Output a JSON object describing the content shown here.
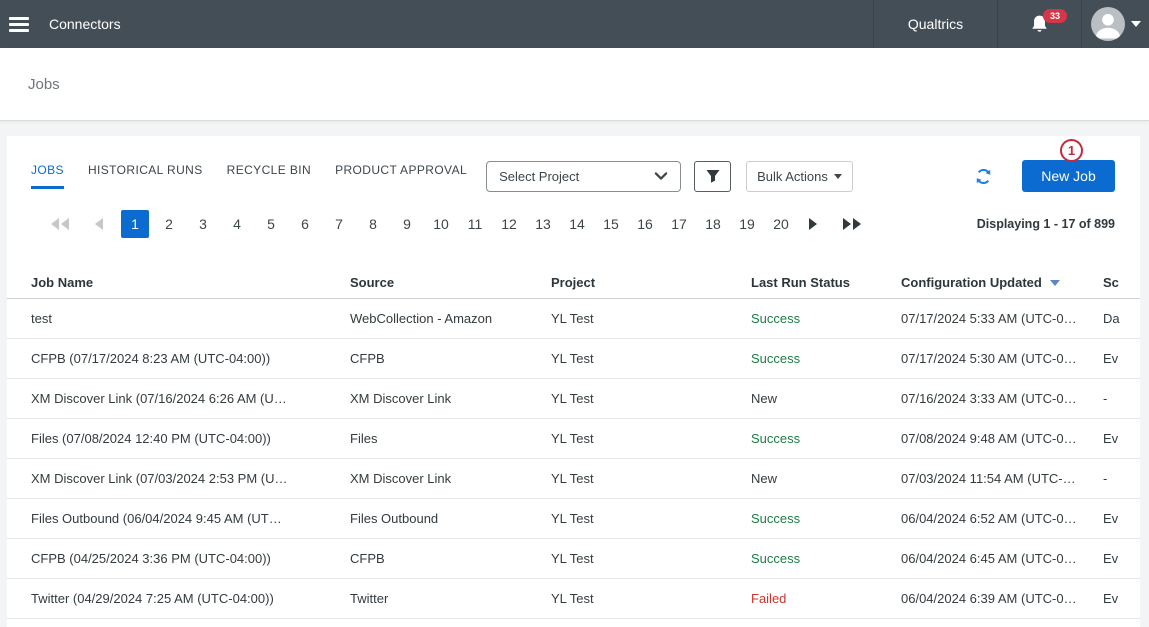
{
  "colors": {
    "accent": "#0b6bd0",
    "success": "#1d7d45",
    "failed": "#cb342a",
    "badge_red": "#d63649",
    "annotation_red": "#c42b3a",
    "topbar_bg": "#434e56"
  },
  "topbar": {
    "title": "Connectors",
    "brand": "Qualtrics",
    "notification_count": "33"
  },
  "page": {
    "title": "Jobs"
  },
  "tabs": [
    {
      "label": "JOBS",
      "active": true
    },
    {
      "label": "HISTORICAL RUNS",
      "active": false
    },
    {
      "label": "RECYCLE BIN",
      "active": false
    },
    {
      "label": "PRODUCT APPROVAL",
      "active": false
    }
  ],
  "toolbar": {
    "project_select_value": "Select Project",
    "bulk_actions_label": "Bulk Actions",
    "new_job_label": "New Job",
    "annotation_badge": "1"
  },
  "pagination": {
    "pages": [
      "1",
      "2",
      "3",
      "4",
      "5",
      "6",
      "7",
      "8",
      "9",
      "10",
      "11",
      "12",
      "13",
      "14",
      "15",
      "16",
      "17",
      "18",
      "19",
      "20"
    ],
    "active_page": "1",
    "display_text": "Displaying 1 - 17 of 899"
  },
  "table": {
    "columns": [
      "Job Name",
      "Source",
      "Project",
      "Last Run Status",
      "Configuration Updated",
      "Sc"
    ],
    "sorted_column": "Configuration Updated",
    "rows": [
      {
        "name": "test",
        "source": "WebCollection - Amazon",
        "project": "YL Test",
        "status": "Success",
        "status_type": "success",
        "updated": "07/17/2024 5:33 AM (UTC-0…",
        "schedule": "Da"
      },
      {
        "name": "CFPB (07/17/2024 8:23 AM (UTC-04:00))",
        "source": "CFPB",
        "project": "YL Test",
        "status": "Success",
        "status_type": "success",
        "updated": "07/17/2024 5:30 AM (UTC-0…",
        "schedule": "Ev"
      },
      {
        "name": "XM Discover Link (07/16/2024 6:26 AM (U…",
        "source": "XM Discover Link",
        "project": "YL Test",
        "status": "New",
        "status_type": "new",
        "updated": "07/16/2024 3:33 AM (UTC-0…",
        "schedule": "-"
      },
      {
        "name": "Files (07/08/2024 12:40 PM (UTC-04:00))",
        "source": "Files",
        "project": "YL Test",
        "status": "Success",
        "status_type": "success",
        "updated": "07/08/2024 9:48 AM (UTC-0…",
        "schedule": "Ev"
      },
      {
        "name": "XM Discover Link (07/03/2024 2:53 PM (U…",
        "source": "XM Discover Link",
        "project": "YL Test",
        "status": "New",
        "status_type": "new",
        "updated": "07/03/2024 11:54 AM (UTC-…",
        "schedule": "-"
      },
      {
        "name": "Files Outbound (06/04/2024 9:45 AM (UT…",
        "source": "Files Outbound",
        "project": "YL Test",
        "status": "Success",
        "status_type": "success",
        "updated": "06/04/2024 6:52 AM (UTC-0…",
        "schedule": "Ev"
      },
      {
        "name": "CFPB (04/25/2024 3:36 PM (UTC-04:00))",
        "source": "CFPB",
        "project": "YL Test",
        "status": "Success",
        "status_type": "success",
        "updated": "06/04/2024 6:45 AM (UTC-0…",
        "schedule": "Ev"
      },
      {
        "name": "Twitter (04/29/2024 7:25 AM (UTC-04:00))",
        "source": "Twitter",
        "project": "YL Test",
        "status": "Failed",
        "status_type": "failed",
        "updated": "06/04/2024 6:39 AM (UTC-0…",
        "schedule": "Ev"
      }
    ]
  }
}
